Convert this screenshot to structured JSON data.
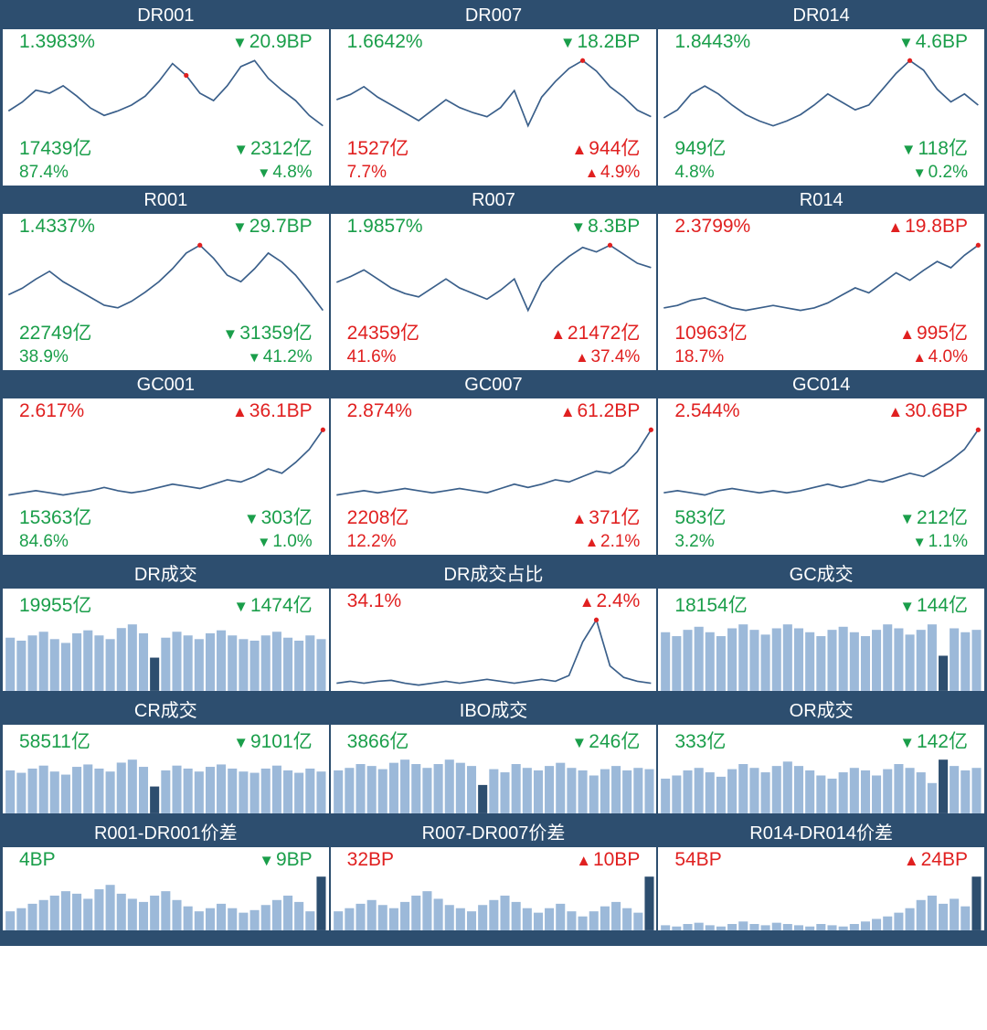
{
  "colors": {
    "header_bg": "#2d4e6f",
    "header_text": "#ffffff",
    "cell_bg": "#ffffff",
    "green": "#1a9e4a",
    "red": "#e02020",
    "line_color": "#3a5f8a",
    "bar_light": "#9cb9d9",
    "bar_dark": "#2d4e6f",
    "marker_red": "#e02020"
  },
  "line_style": {
    "stroke_width": 1.6
  },
  "cells": [
    {
      "id": "dr001",
      "title": "DR001",
      "type": "line",
      "top_left": "1.3983%",
      "top_left_color": "green",
      "top_right": "20.9BP",
      "top_right_color": "green",
      "top_right_dir": "down",
      "bot1_left": "17439亿",
      "bot1_left_color": "green",
      "bot1_right": "2312亿",
      "bot1_right_color": "green",
      "bot1_right_dir": "down",
      "bot2_left": "87.4%",
      "bot2_left_color": "green",
      "bot2_right": "4.8%",
      "bot2_right_color": "green",
      "bot2_right_dir": "down",
      "series": [
        38,
        44,
        52,
        50,
        55,
        48,
        40,
        35,
        38,
        42,
        48,
        58,
        70,
        62,
        50,
        45,
        55,
        68,
        72,
        60,
        52,
        45,
        35,
        28
      ],
      "marker_index": 13
    },
    {
      "id": "dr007",
      "title": "DR007",
      "type": "line",
      "top_left": "1.6642%",
      "top_left_color": "green",
      "top_right": "18.2BP",
      "top_right_color": "green",
      "top_right_dir": "down",
      "bot1_left": "1527亿",
      "bot1_left_color": "red",
      "bot1_right": "944亿",
      "bot1_right_color": "red",
      "bot1_right_dir": "up",
      "bot2_left": "7.7%",
      "bot2_left_color": "red",
      "bot2_right": "4.9%",
      "bot2_right_color": "red",
      "bot2_right_dir": "up",
      "series": [
        48,
        52,
        58,
        50,
        44,
        38,
        32,
        40,
        48,
        42,
        38,
        35,
        42,
        55,
        28,
        50,
        62,
        72,
        78,
        70,
        58,
        50,
        40,
        35
      ],
      "marker_index": 18
    },
    {
      "id": "dr014",
      "title": "DR014",
      "type": "line",
      "top_left": "1.8443%",
      "top_left_color": "green",
      "top_right": "4.6BP",
      "top_right_color": "green",
      "top_right_dir": "down",
      "bot1_left": "949亿",
      "bot1_left_color": "green",
      "bot1_right": "118亿",
      "bot1_right_color": "green",
      "bot1_right_dir": "down",
      "bot2_left": "4.8%",
      "bot2_left_color": "green",
      "bot2_right": "0.2%",
      "bot2_right_color": "green",
      "bot2_right_dir": "down",
      "series": [
        40,
        45,
        55,
        60,
        55,
        48,
        42,
        38,
        35,
        38,
        42,
        48,
        55,
        50,
        45,
        48,
        58,
        68,
        76,
        70,
        58,
        50,
        55,
        48
      ],
      "marker_index": 18
    },
    {
      "id": "r001",
      "title": "R001",
      "type": "line",
      "top_left": "1.4337%",
      "top_left_color": "green",
      "top_right": "29.7BP",
      "top_right_color": "green",
      "top_right_dir": "down",
      "bot1_left": "22749亿",
      "bot1_left_color": "green",
      "bot1_right": "31359亿",
      "bot1_right_color": "green",
      "bot1_right_dir": "down",
      "bot2_left": "38.9%",
      "bot2_left_color": "green",
      "bot2_right": "41.2%",
      "bot2_right_color": "green",
      "bot2_right_dir": "down",
      "series": [
        40,
        45,
        52,
        58,
        50,
        44,
        38,
        32,
        30,
        35,
        42,
        50,
        60,
        72,
        78,
        68,
        55,
        50,
        60,
        72,
        65,
        55,
        42,
        28
      ],
      "marker_index": 14
    },
    {
      "id": "r007",
      "title": "R007",
      "type": "line",
      "top_left": "1.9857%",
      "top_left_color": "green",
      "top_right": "8.3BP",
      "top_right_color": "green",
      "top_right_dir": "down",
      "bot1_left": "24359亿",
      "bot1_left_color": "red",
      "bot1_right": "21472亿",
      "bot1_right_color": "red",
      "bot1_right_dir": "up",
      "bot2_left": "41.6%",
      "bot2_left_color": "red",
      "bot2_right": "37.4%",
      "bot2_right_color": "red",
      "bot2_right_dir": "up",
      "series": [
        45,
        50,
        56,
        48,
        40,
        35,
        32,
        40,
        48,
        40,
        35,
        30,
        38,
        48,
        20,
        45,
        58,
        68,
        76,
        72,
        78,
        70,
        62,
        58
      ],
      "marker_index": 20
    },
    {
      "id": "r014",
      "title": "R014",
      "type": "line",
      "top_left": "2.3799%",
      "top_left_color": "red",
      "top_right": "19.8BP",
      "top_right_color": "red",
      "top_right_dir": "up",
      "bot1_left": "10963亿",
      "bot1_left_color": "red",
      "bot1_right": "995亿",
      "bot1_right_color": "red",
      "bot1_right_dir": "up",
      "bot2_left": "18.7%",
      "bot2_left_color": "red",
      "bot2_right": "4.0%",
      "bot2_right_color": "red",
      "bot2_right_dir": "up",
      "series": [
        28,
        30,
        34,
        36,
        32,
        28,
        26,
        28,
        30,
        28,
        26,
        28,
        32,
        38,
        44,
        40,
        48,
        56,
        50,
        58,
        65,
        60,
        70,
        78
      ],
      "marker_index": 23
    },
    {
      "id": "gc001",
      "title": "GC001",
      "type": "line",
      "top_left": "2.617%",
      "top_left_color": "red",
      "top_right": "36.1BP",
      "top_right_color": "red",
      "top_right_dir": "up",
      "bot1_left": "15363亿",
      "bot1_left_color": "green",
      "bot1_right": "303亿",
      "bot1_right_color": "green",
      "bot1_right_dir": "down",
      "bot2_left": "84.6%",
      "bot2_left_color": "green",
      "bot2_right": "1.0%",
      "bot2_right_color": "green",
      "bot2_right_dir": "down",
      "series": [
        18,
        20,
        22,
        20,
        18,
        20,
        22,
        25,
        22,
        20,
        22,
        25,
        28,
        26,
        24,
        28,
        32,
        30,
        35,
        42,
        38,
        48,
        60,
        78
      ],
      "marker_index": 23
    },
    {
      "id": "gc007",
      "title": "GC007",
      "type": "line",
      "top_left": "2.874%",
      "top_left_color": "red",
      "top_right": "61.2BP",
      "top_right_color": "red",
      "top_right_dir": "up",
      "bot1_left": "2208亿",
      "bot1_left_color": "red",
      "bot1_right": "371亿",
      "bot1_right_color": "red",
      "bot1_right_dir": "up",
      "bot2_left": "12.2%",
      "bot2_left_color": "red",
      "bot2_right": "2.1%",
      "bot2_right_color": "red",
      "bot2_right_dir": "up",
      "series": [
        18,
        20,
        22,
        20,
        22,
        24,
        22,
        20,
        22,
        24,
        22,
        20,
        24,
        28,
        25,
        28,
        32,
        30,
        35,
        40,
        38,
        45,
        58,
        78
      ],
      "marker_index": 23
    },
    {
      "id": "gc014",
      "title": "GC014",
      "type": "line",
      "top_left": "2.544%",
      "top_left_color": "red",
      "top_right": "30.6BP",
      "top_right_color": "red",
      "top_right_dir": "up",
      "bot1_left": "583亿",
      "bot1_left_color": "green",
      "bot1_right": "212亿",
      "bot1_right_color": "green",
      "bot1_right_dir": "down",
      "bot2_left": "3.2%",
      "bot2_left_color": "green",
      "bot2_right": "1.1%",
      "bot2_right_color": "green",
      "bot2_right_dir": "down",
      "series": [
        20,
        22,
        20,
        18,
        22,
        24,
        22,
        20,
        22,
        20,
        22,
        25,
        28,
        25,
        28,
        32,
        30,
        34,
        38,
        35,
        42,
        50,
        60,
        78
      ],
      "marker_index": 23
    },
    {
      "id": "dr_vol",
      "title": "DR成交",
      "type": "bar",
      "top_left": "19955亿",
      "top_left_color": "green",
      "top_right": "1474亿",
      "top_right_color": "green",
      "top_right_dir": "down",
      "bars": [
        72,
        68,
        75,
        80,
        70,
        65,
        78,
        82,
        75,
        70,
        85,
        90,
        78,
        45,
        72,
        80,
        75,
        70,
        78,
        82,
        75,
        70,
        68,
        75,
        80,
        72,
        68,
        75,
        70
      ],
      "highlight_index": 13
    },
    {
      "id": "dr_ratio",
      "title": "DR成交占比",
      "type": "line",
      "top_left": "34.1%",
      "top_left_color": "red",
      "top_right": "2.4%",
      "top_right_color": "red",
      "top_right_dir": "up",
      "series": [
        12,
        14,
        12,
        14,
        15,
        12,
        10,
        12,
        14,
        12,
        14,
        16,
        14,
        12,
        14,
        16,
        14,
        20,
        55,
        78,
        30,
        18,
        14,
        12
      ],
      "marker_index": 19
    },
    {
      "id": "gc_vol",
      "title": "GC成交",
      "type": "bar",
      "top_left": "18154亿",
      "top_left_color": "green",
      "top_right": "144亿",
      "top_right_color": "green",
      "top_right_dir": "down",
      "bars": [
        75,
        70,
        78,
        82,
        75,
        70,
        80,
        85,
        78,
        72,
        80,
        85,
        80,
        75,
        70,
        78,
        82,
        75,
        70,
        78,
        85,
        80,
        72,
        78,
        85,
        45,
        80,
        75,
        78
      ],
      "highlight_index": 25
    },
    {
      "id": "cr_vol",
      "title": "CR成交",
      "type": "bar",
      "top_left": "58511亿",
      "top_left_color": "green",
      "top_right": "9101亿",
      "top_right_color": "green",
      "top_right_dir": "down",
      "bars": [
        72,
        68,
        75,
        80,
        70,
        65,
        78,
        82,
        75,
        70,
        85,
        90,
        78,
        45,
        72,
        80,
        75,
        70,
        78,
        82,
        75,
        70,
        68,
        75,
        80,
        72,
        68,
        75,
        70
      ],
      "highlight_index": 13
    },
    {
      "id": "ibo_vol",
      "title": "IBO成交",
      "type": "bar",
      "top_left": "3866亿",
      "top_left_color": "green",
      "top_right": "246亿",
      "top_right_color": "green",
      "top_right_dir": "down",
      "bars": [
        68,
        72,
        78,
        75,
        70,
        80,
        85,
        78,
        72,
        78,
        85,
        80,
        75,
        45,
        70,
        65,
        78,
        72,
        68,
        75,
        80,
        72,
        68,
        60,
        70,
        75,
        68,
        72,
        70
      ],
      "highlight_index": 13
    },
    {
      "id": "or_vol",
      "title": "OR成交",
      "type": "bar",
      "top_left": "333亿",
      "top_left_color": "green",
      "top_right": "142亿",
      "top_right_color": "green",
      "top_right_dir": "down",
      "bars": [
        55,
        60,
        68,
        72,
        65,
        58,
        70,
        78,
        72,
        65,
        75,
        82,
        75,
        68,
        60,
        55,
        65,
        72,
        68,
        60,
        70,
        78,
        72,
        65,
        48,
        85,
        75,
        68,
        72
      ],
      "highlight_index": 25
    },
    {
      "id": "spread001",
      "title": "R001-DR001价差",
      "type": "bar",
      "top_left": "4BP",
      "top_left_color": "green",
      "top_right": "9BP",
      "top_right_color": "green",
      "top_right_dir": "down",
      "bars": [
        30,
        35,
        42,
        48,
        55,
        62,
        58,
        50,
        65,
        72,
        58,
        50,
        45,
        55,
        62,
        48,
        38,
        30,
        35,
        42,
        35,
        28,
        32,
        40,
        48,
        55,
        45,
        30,
        85
      ],
      "highlight_index": 28
    },
    {
      "id": "spread007",
      "title": "R007-DR007价差",
      "type": "bar",
      "top_left": "32BP",
      "top_left_color": "red",
      "top_right": "10BP",
      "top_right_color": "red",
      "top_right_dir": "up",
      "bars": [
        30,
        35,
        42,
        48,
        40,
        35,
        45,
        55,
        62,
        50,
        40,
        35,
        30,
        40,
        48,
        55,
        45,
        35,
        28,
        35,
        42,
        30,
        22,
        30,
        38,
        45,
        35,
        28,
        85
      ],
      "highlight_index": 28
    },
    {
      "id": "spread014",
      "title": "R014-DR014价差",
      "type": "bar",
      "top_left": "54BP",
      "top_left_color": "red",
      "top_right": "24BP",
      "top_right_color": "red",
      "top_right_dir": "up",
      "bars": [
        8,
        6,
        10,
        12,
        8,
        6,
        10,
        14,
        10,
        8,
        12,
        10,
        8,
        6,
        10,
        8,
        6,
        10,
        14,
        18,
        22,
        28,
        35,
        48,
        55,
        42,
        50,
        38,
        85
      ],
      "highlight_index": 28
    }
  ]
}
